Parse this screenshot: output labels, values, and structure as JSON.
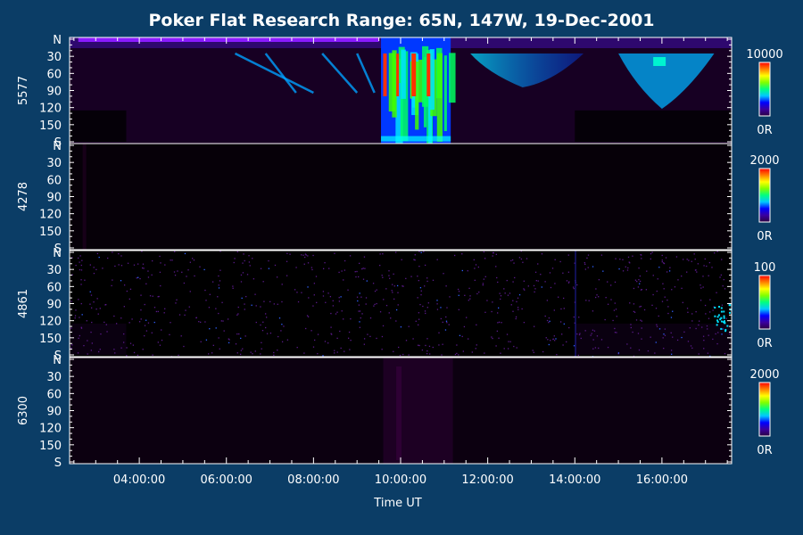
{
  "title": "Poker Flat Research Range: 65N, 147W, 19-Dec-2001",
  "colors": {
    "background": "#0b3d66",
    "foreground": "#ffffff",
    "panel": "#000000",
    "colorbar": [
      "#2b0040",
      "#3a00a0",
      "#0000ff",
      "#00c8ff",
      "#00ff80",
      "#80ff00",
      "#ffff00",
      "#ff8000",
      "#ff0000"
    ]
  },
  "chart_data": {
    "type": "heatmap",
    "title": "Poker Flat Research Range: 65N, 147W, 19-Dec-2001",
    "xlabel": "Time UT",
    "x_range_hours": [
      2.4,
      17.6
    ],
    "xticks": [
      {
        "hour": 4,
        "label": "04:00:00"
      },
      {
        "hour": 6,
        "label": "06:00:00"
      },
      {
        "hour": 8,
        "label": "08:00:00"
      },
      {
        "hour": 10,
        "label": "10:00:00"
      },
      {
        "hour": 12,
        "label": "12:00:00"
      },
      {
        "hour": 14,
        "label": "14:00:00"
      },
      {
        "hour": 16,
        "label": "16:00:00"
      }
    ],
    "y_range_deg": [
      0,
      180
    ],
    "yticks": [
      {
        "deg": 0,
        "label": "N"
      },
      {
        "deg": 30,
        "label": "30"
      },
      {
        "deg": 60,
        "label": "60"
      },
      {
        "deg": 90,
        "label": "90"
      },
      {
        "deg": 120,
        "label": "120"
      },
      {
        "deg": 150,
        "label": "150"
      },
      {
        "deg": 180,
        "label": "S"
      }
    ],
    "panels": [
      {
        "ylabel": "5577",
        "colorbar_max": "10000",
        "colorbar_min": "0R"
      },
      {
        "ylabel": "4278",
        "colorbar_max": "2000",
        "colorbar_min": "0R"
      },
      {
        "ylabel": "4861",
        "colorbar_max": "100",
        "colorbar_min": "0R"
      },
      {
        "ylabel": "6300",
        "colorbar_max": "2000",
        "colorbar_min": "0R"
      }
    ]
  }
}
